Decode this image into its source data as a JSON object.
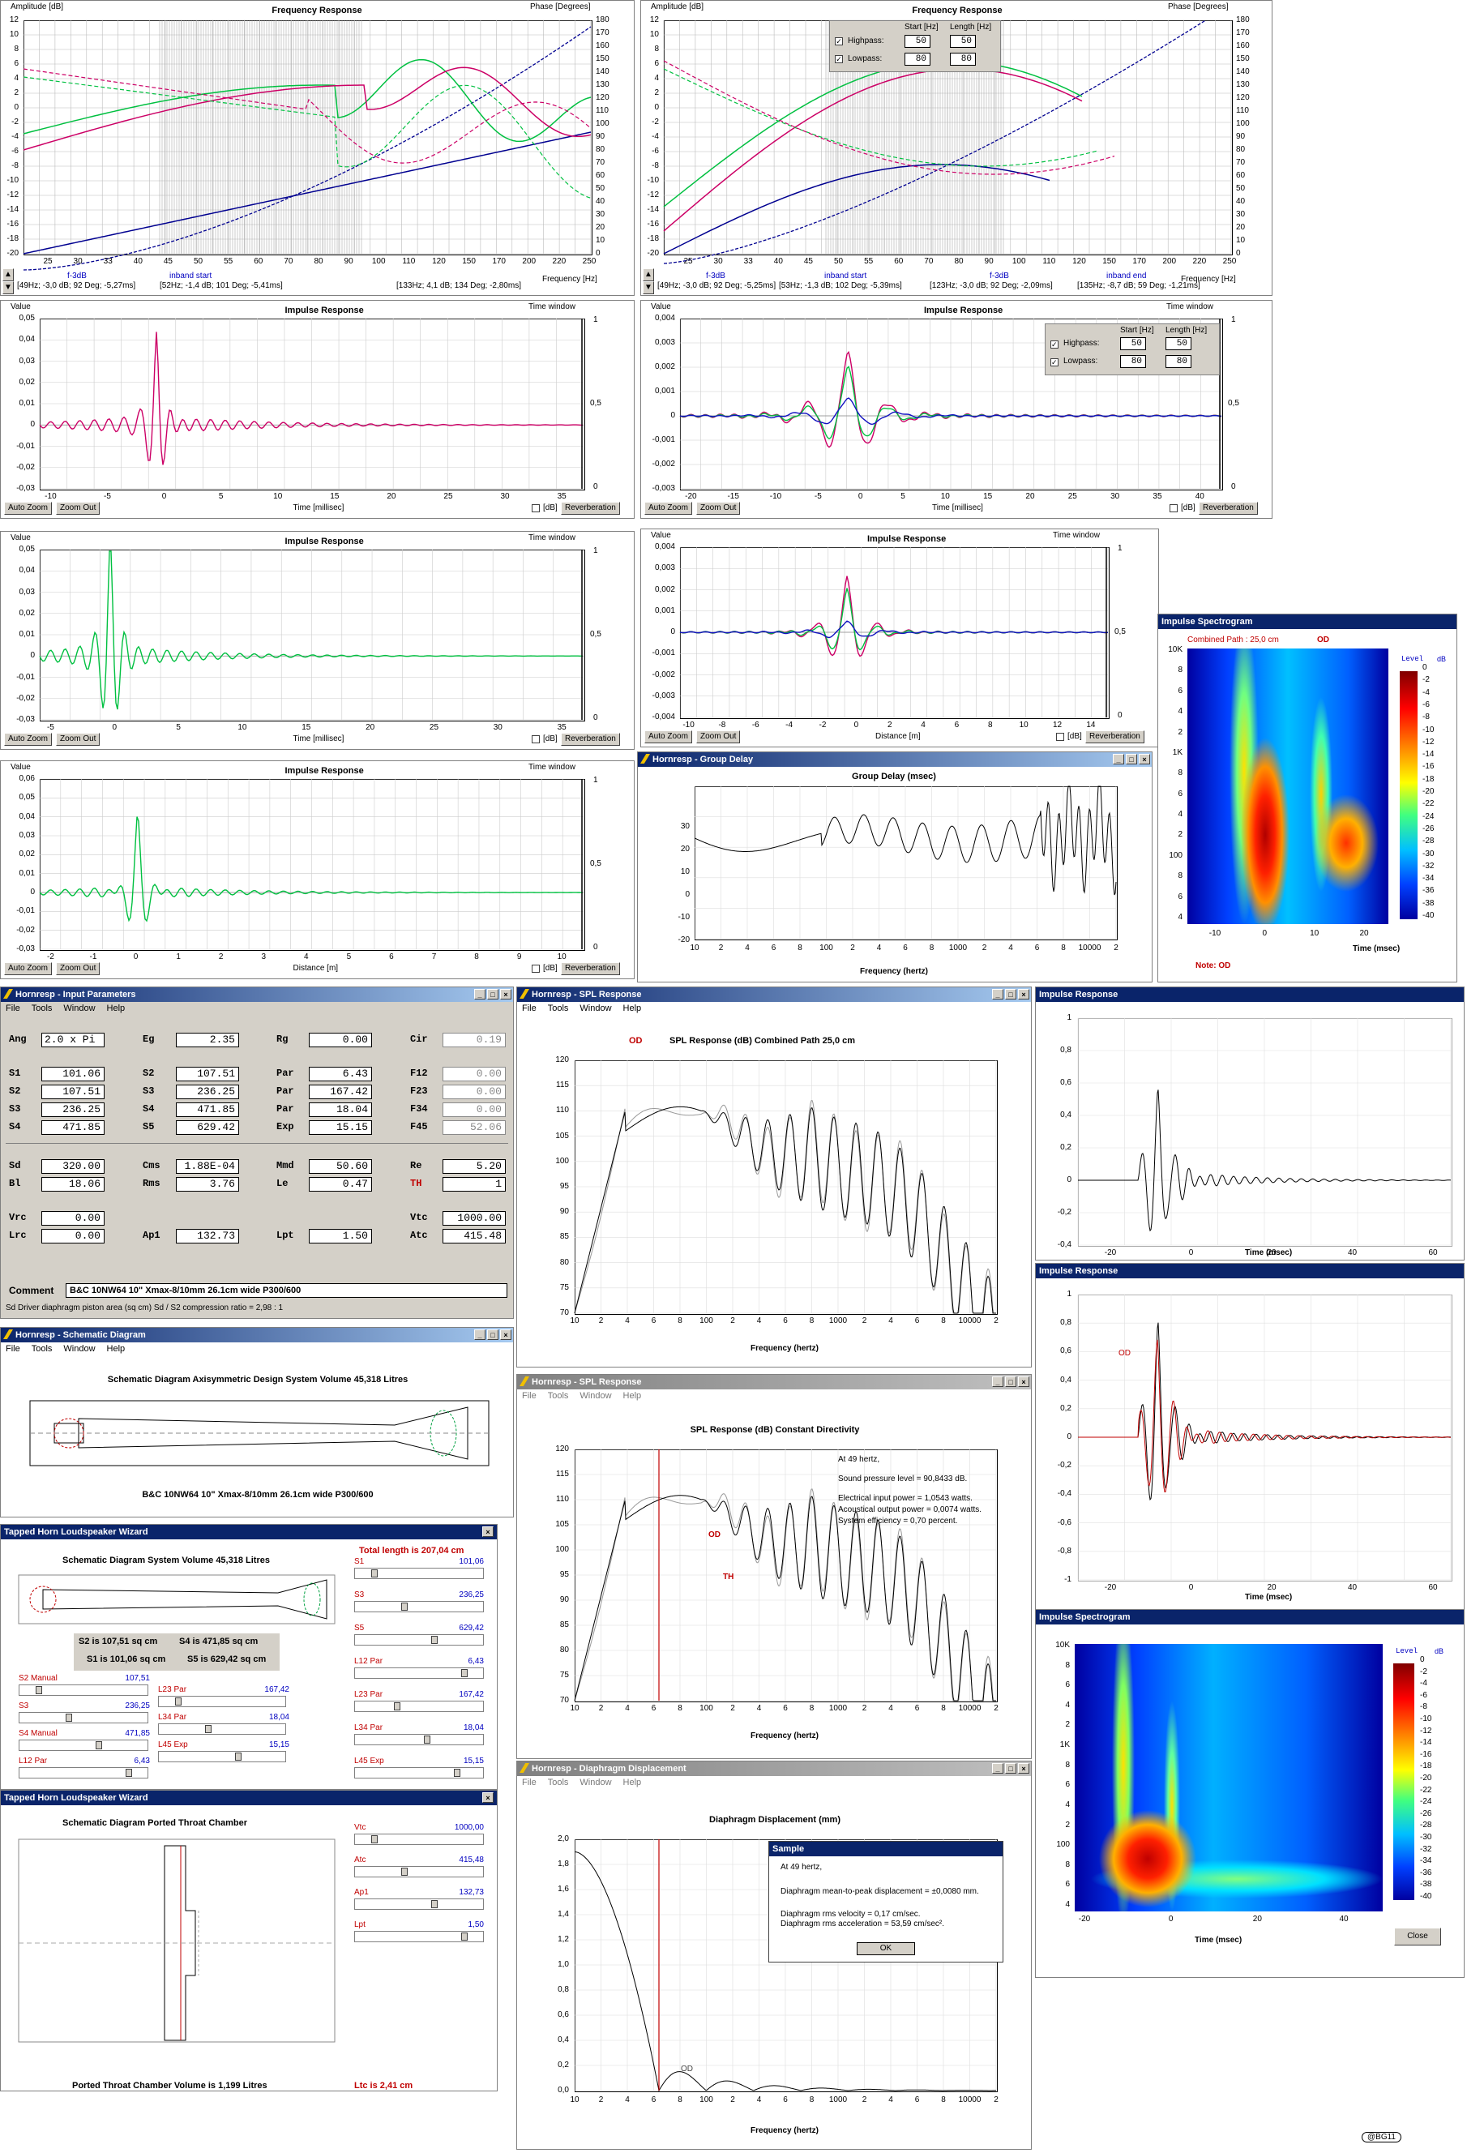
{
  "fr1": {
    "title": "Frequency Response",
    "ylabel_left": "Amplitude [dB]",
    "ylabel_right": "Phase [Degrees]",
    "xlabel": "Frequency [Hz]",
    "left_ticks": [
      "12",
      "10",
      "8",
      "6",
      "4",
      "2",
      "0",
      "-2",
      "-4",
      "-6",
      "-8",
      "-10",
      "-12",
      "-14",
      "-16",
      "-18",
      "-20"
    ],
    "right_ticks": [
      "180",
      "170",
      "160",
      "150",
      "140",
      "130",
      "120",
      "110",
      "100",
      "90",
      "80",
      "70",
      "60",
      "50",
      "40",
      "30",
      "20",
      "10",
      "0"
    ],
    "x_ticks": [
      "25",
      "30",
      "33",
      "40",
      "45",
      "50",
      "55",
      "60",
      "70",
      "80",
      "90",
      "100",
      "110",
      "120",
      "150",
      "170",
      "200",
      "220",
      "250"
    ],
    "markers": [
      {
        "label": "f-3dB",
        "value": "[49Hz; -3,0 dB; 92 Deg; -5,27ms]"
      },
      {
        "label": "inband start",
        "value": "[52Hz; -1,4 dB; 101 Deg; -5,41ms]"
      },
      {
        "label": "",
        "value": "[133Hz; 4,1 dB; 134 Deg; -2,80ms]"
      }
    ]
  },
  "fr2": {
    "title": "Frequency Response",
    "ylabel_left": "Amplitude [dB]",
    "ylabel_right": "Phase [Degrees]",
    "xlabel": "Frequency [Hz]",
    "x_ticks": [
      "25",
      "30",
      "33",
      "40",
      "45",
      "50",
      "55",
      "60",
      "70",
      "80",
      "90",
      "100",
      "110",
      "120",
      "150",
      "170",
      "200",
      "220",
      "250"
    ],
    "filter": {
      "start_header": "Start [Hz]",
      "length_header": "Length [Hz]",
      "highpass": "Highpass:",
      "lowpass": "Lowpass:",
      "hp_start": "50",
      "hp_len": "50",
      "lp_start": "80",
      "lp_len": "80"
    },
    "markers": [
      {
        "label": "f-3dB",
        "value": "[49Hz; -3,0 dB; 92 Deg; -5,25ms]"
      },
      {
        "label": "inband start",
        "value": "[53Hz; -1,3 dB; 102 Deg; -5,39ms]"
      },
      {
        "label": "f-3dB",
        "value": "[123Hz; -3,0 dB; 92 Deg; -2,09ms]"
      },
      {
        "label": "inband end",
        "value": "[135Hz; -8,7 dB; 59 Deg; -1,21ms]"
      }
    ]
  },
  "ir_common": {
    "title": "Impulse Response",
    "value": "Value",
    "time_window": "Time window",
    "auto_zoom": "Auto Zoom",
    "zoom_out": "Zoom Out",
    "db": "[dB]",
    "reverberation": "Reverberation",
    "one": "1",
    "half": "0,5",
    "zero": "0"
  },
  "ir1": {
    "xlabel": "Time [millisec]",
    "y_ticks": [
      "0,05",
      "0,04",
      "0,03",
      "0,02",
      "0,01",
      "0",
      "-0,01",
      "-0,02",
      "-0,03"
    ],
    "x_ticks": [
      "-10",
      "-5",
      "0",
      "5",
      "10",
      "15",
      "20",
      "25",
      "30",
      "35"
    ]
  },
  "ir2": {
    "xlabel": "Time [millisec]",
    "y_ticks": [
      "0,004",
      "0,003",
      "0,002",
      "0,001",
      "0",
      "-0,001",
      "-0,002",
      "-0,003"
    ],
    "x_ticks": [
      "-20",
      "-15",
      "-10",
      "-5",
      "0",
      "5",
      "10",
      "15",
      "20",
      "25",
      "30",
      "35",
      "40"
    ],
    "filter": {
      "start_header": "Start [Hz]",
      "length_header": "Length [Hz]",
      "highpass": "Highpass:",
      "lowpass": "Lowpass:",
      "hp_start": "50",
      "hp_len": "50",
      "lp_start": "80",
      "lp_len": "80"
    }
  },
  "ir3": {
    "xlabel": "Time [millisec]",
    "y_ticks": [
      "0,05",
      "0,04",
      "0,03",
      "0,02",
      "0,01",
      "0",
      "-0,01",
      "-0,02",
      "-0,03"
    ],
    "x_ticks": [
      "-5",
      "0",
      "5",
      "10",
      "15",
      "20",
      "25",
      "30",
      "35"
    ]
  },
  "ir4": {
    "xlabel": "Distance [m]",
    "y_ticks": [
      "0,004",
      "0,003",
      "0,002",
      "0,001",
      "0",
      "-0,001",
      "-0,002",
      "-0,003",
      "-0,004"
    ],
    "x_ticks": [
      "-10",
      "-8",
      "-6",
      "-4",
      "-2",
      "0",
      "2",
      "4",
      "6",
      "8",
      "10",
      "12",
      "14"
    ]
  },
  "ir5": {
    "xlabel": "Distance [m]",
    "y_ticks": [
      "0,06",
      "0,05",
      "0,04",
      "0,03",
      "0,02",
      "0,01",
      "0",
      "-0,01",
      "-0,02",
      "-0,03"
    ],
    "x_ticks": [
      "-2",
      "-1",
      "0",
      "1",
      "2",
      "3",
      "4",
      "5",
      "6",
      "7",
      "8",
      "9",
      "10"
    ]
  },
  "spec1": {
    "title": "Impulse Spectrogram",
    "subtitle": "Combined   Path : 25,0 cm",
    "od": "OD",
    "level": "Level",
    "db": "dB",
    "note": "Note: OD",
    "xlabel": "Time (msec)",
    "y_ticks": [
      "10K",
      "8",
      "6",
      "4",
      "2",
      "1K",
      "8",
      "6",
      "4",
      "2",
      "100",
      "8",
      "6",
      "4"
    ],
    "x_ticks": [
      "-10",
      "0",
      "10",
      "20"
    ],
    "scale": [
      "0",
      "-2",
      "-4",
      "-6",
      "-8",
      "-10",
      "-12",
      "-14",
      "-16",
      "-18",
      "-20",
      "-22",
      "-24",
      "-26",
      "-28",
      "-30",
      "-32",
      "-34",
      "-36",
      "-38",
      "-40"
    ]
  },
  "group_delay": {
    "window": "Hornresp - Group Delay",
    "title": "Group Delay (msec)",
    "xlabel": "Frequency (hertz)",
    "y_ticks": [
      "30",
      "20",
      "10",
      "0",
      "-10",
      "-20"
    ],
    "x_ticks": [
      "10",
      "2",
      "4",
      "6",
      "8",
      "100",
      "2",
      "4",
      "6",
      "8",
      "1000",
      "2",
      "4",
      "6",
      "8",
      "10000",
      "2"
    ]
  },
  "input_params": {
    "window": "Hornresp - Input Parameters",
    "menu": [
      "File",
      "Tools",
      "Window",
      "Help"
    ],
    "rows": [
      [
        {
          "k": "Ang",
          "v": "2.0 x Pi",
          "t": "l"
        },
        {
          "k": "Eg",
          "v": "2.35"
        },
        {
          "k": "Rg",
          "v": "0.00"
        },
        {
          "k": "Cir",
          "v": "0.19",
          "g": true
        }
      ],
      [
        {
          "k": "S1",
          "v": "101.06"
        },
        {
          "k": "S2",
          "v": "107.51"
        },
        {
          "k": "Par",
          "v": "6.43"
        },
        {
          "k": "F12",
          "v": "0.00",
          "g": true
        }
      ],
      [
        {
          "k": "S2",
          "v": "107.51"
        },
        {
          "k": "S3",
          "v": "236.25"
        },
        {
          "k": "Par",
          "v": "167.42"
        },
        {
          "k": "F23",
          "v": "0.00",
          "g": true
        }
      ],
      [
        {
          "k": "S3",
          "v": "236.25"
        },
        {
          "k": "S4",
          "v": "471.85"
        },
        {
          "k": "Par",
          "v": "18.04"
        },
        {
          "k": "F34",
          "v": "0.00",
          "g": true
        }
      ],
      [
        {
          "k": "S4",
          "v": "471.85"
        },
        {
          "k": "S5",
          "v": "629.42"
        },
        {
          "k": "Exp",
          "v": "15.15"
        },
        {
          "k": "F45",
          "v": "52.06",
          "g": true
        }
      ],
      [
        {
          "k": "Sd",
          "v": "320.00"
        },
        {
          "k": "Cms",
          "v": "1.88E-04"
        },
        {
          "k": "Mmd",
          "v": "50.60"
        },
        {
          "k": "Re",
          "v": "5.20"
        }
      ],
      [
        {
          "k": "Bl",
          "v": "18.06"
        },
        {
          "k": "Rms",
          "v": "3.76"
        },
        {
          "k": "Le",
          "v": "0.47"
        },
        {
          "k": "TH",
          "v": "1",
          "r": true
        }
      ],
      [
        {
          "k": "Vrc",
          "v": "0.00"
        },
        {
          "k": "Vtc",
          "v": "1000.00"
        }
      ],
      [
        {
          "k": "Lrc",
          "v": "0.00"
        },
        {
          "k": "Ap1",
          "v": "132.73"
        },
        {
          "k": "Lpt",
          "v": "1.50"
        },
        {
          "k": "Atc",
          "v": "415.48"
        }
      ]
    ],
    "comment_label": "Comment",
    "comment": "B&C 10NW64 10\"  Xmax-8/10mm  26.1cm wide P300/600",
    "status": "Sd  Driver diaphragm piston area  (sq cm)   Sd / S2 compression ratio = 2,98 : 1"
  },
  "spl1": {
    "window": "Hornresp - SPL Response",
    "od": "OD",
    "title": "SPL Response (dB)   Combined   Path 25,0 cm",
    "xlabel": "Frequency (hertz)",
    "y_ticks": [
      "120",
      "115",
      "110",
      "105",
      "100",
      "95",
      "90",
      "85",
      "80",
      "75",
      "70"
    ],
    "x_ticks": [
      "10",
      "2",
      "4",
      "6",
      "8",
      "100",
      "2",
      "4",
      "6",
      "8",
      "1000",
      "2",
      "4",
      "6",
      "8",
      "10000",
      "2"
    ]
  },
  "ir_small1": {
    "title": "Impulse Response",
    "y_ticks": [
      "1",
      "0,8",
      "0,6",
      "0,4",
      "0,2",
      "0",
      "-0,2",
      "-0,4"
    ],
    "x_ticks": [
      "-20",
      "0",
      "20",
      "40",
      "60"
    ],
    "xlabel": "Time (msec)"
  },
  "schematic": {
    "window": "Hornresp - Schematic Diagram",
    "title": "Schematic Diagram   Axisymmetric Design   System Volume 45,318 Litres",
    "caption": "B&C 10NW64 10\"  Xmax-8/10mm  26.1cm wide P300/600"
  },
  "spl2": {
    "window": "Hornresp - SPL Response",
    "title": "SPL Response (dB)   Constant Directivity",
    "xlabel": "Frequency (hertz)",
    "info": [
      "At 49 hertz,",
      "Sound pressure level = 90,8433 dB.",
      "Electrical input power = 1,0543 watts.",
      "Acoustical output power = 0,0074 watts.",
      "System efficiency = 0,70 percent."
    ],
    "od": "OD",
    "th": "TH",
    "y_ticks": [
      "120",
      "115",
      "110",
      "105",
      "100",
      "95",
      "90",
      "85",
      "80",
      "75",
      "70"
    ],
    "x_ticks": [
      "10",
      "2",
      "4",
      "6",
      "8",
      "100",
      "2",
      "4",
      "6",
      "8",
      "1000",
      "2",
      "4",
      "6",
      "8",
      "10000",
      "2"
    ]
  },
  "ir_small2": {
    "title": "Impulse Response",
    "od": "OD",
    "y_ticks": [
      "1",
      "0,8",
      "0,6",
      "0,4",
      "0,2",
      "0",
      "-0,2",
      "-0,4",
      "-0,6",
      "-0,8",
      "-1"
    ],
    "x_ticks": [
      "-20",
      "0",
      "20",
      "40",
      "60"
    ],
    "xlabel": "Time (msec)"
  },
  "wizard1": {
    "title": "Tapped Horn Loudspeaker Wizard",
    "diagram_title": "Schematic Diagram   System Volume 45,318 Litres",
    "total": "Total length is 207,04 cm",
    "areas": [
      "S2 is 107,51 sq cm",
      "S4 is 471,85 sq cm",
      "S1 is 101,06 sq cm",
      "S5 is 629,42 sq cm"
    ],
    "right": [
      {
        "k": "S1",
        "v": "101,06"
      },
      {
        "k": "S3",
        "v": "236,25"
      },
      {
        "k": "S5",
        "v": "629,42"
      },
      {
        "k": "L12  Par",
        "v": "6,43"
      },
      {
        "k": "L23  Par",
        "v": "167,42"
      },
      {
        "k": "L34  Par",
        "v": "18,04"
      },
      {
        "k": "L45  Exp",
        "v": "15,15"
      }
    ],
    "left": [
      {
        "k": "S2  Manual",
        "v": "107,51"
      },
      {
        "k": "S3",
        "v": "236,25"
      },
      {
        "k": "S4  Manual",
        "v": "471,85"
      },
      {
        "k": "L12  Par",
        "v": "6,43"
      }
    ],
    "mid": [
      {
        "k": "L23  Par",
        "v": "167,42"
      },
      {
        "k": "L34  Par",
        "v": "18,04"
      },
      {
        "k": "L45  Exp",
        "v": "15,15"
      }
    ]
  },
  "wizard2": {
    "title": "Tapped Horn Loudspeaker Wizard",
    "diagram_title": "Schematic Diagram   Ported Throat Chamber",
    "params": [
      {
        "k": "Vtc",
        "v": "1000,00"
      },
      {
        "k": "Atc",
        "v": "415,48"
      },
      {
        "k": "Ap1",
        "v": "132,73"
      },
      {
        "k": "Lpt",
        "v": "1,50"
      }
    ],
    "volume": "Ported Throat Chamber Volume is 1,199 Litres",
    "ltc": "Ltc is 2,41 cm"
  },
  "diaphragm": {
    "window": "Hornresp - Diaphragm Displacement",
    "menu": [
      "File",
      "Tools",
      "Window",
      "Help"
    ],
    "title": "Diaphragm Displacement (mm)",
    "xlabel": "Frequency (hertz)",
    "od": "OD",
    "y_ticks": [
      "2,0",
      "1,8",
      "1,6",
      "1,4",
      "1,2",
      "1,0",
      "0,8",
      "0,6",
      "0,4",
      "0,2",
      "0,0"
    ],
    "x_ticks": [
      "10",
      "2",
      "4",
      "6",
      "8",
      "100",
      "2",
      "4",
      "6",
      "8",
      "1000",
      "2",
      "4",
      "6",
      "8",
      "10000",
      "2"
    ],
    "sample_title": "Sample",
    "sample_lines": [
      "At 49 hertz,",
      "Diaphragm mean-to-peak displacement = ±0,0080 mm.",
      "Diaphragm rms velocity = 0,17 cm/sec.",
      "Diaphragm rms acceleration = 53,59 cm/sec²."
    ],
    "ok": "OK"
  },
  "spec2": {
    "title": "Impulse Spectrogram",
    "level": "Level",
    "db": "dB",
    "xlabel": "Time (msec)",
    "close": "Close",
    "y_ticks": [
      "10K",
      "8",
      "6",
      "4",
      "2",
      "1K",
      "8",
      "6",
      "4",
      "2",
      "100",
      "8",
      "6",
      "4"
    ],
    "x_ticks": [
      "-20",
      "0",
      "20",
      "40"
    ],
    "scale": [
      "0",
      "-2",
      "-4",
      "-6",
      "-8",
      "-10",
      "-12",
      "-14",
      "-16",
      "-18",
      "-20",
      "-22",
      "-24",
      "-26",
      "-28",
      "-30",
      "-32",
      "-34",
      "-36",
      "-38",
      "-40"
    ]
  },
  "signature": "@BG11",
  "colors": {
    "green": "#00c040",
    "magenta": "#cc0066",
    "navy": "#000090",
    "blue": "#1010c0",
    "hornresp_title": "#0a246a"
  }
}
